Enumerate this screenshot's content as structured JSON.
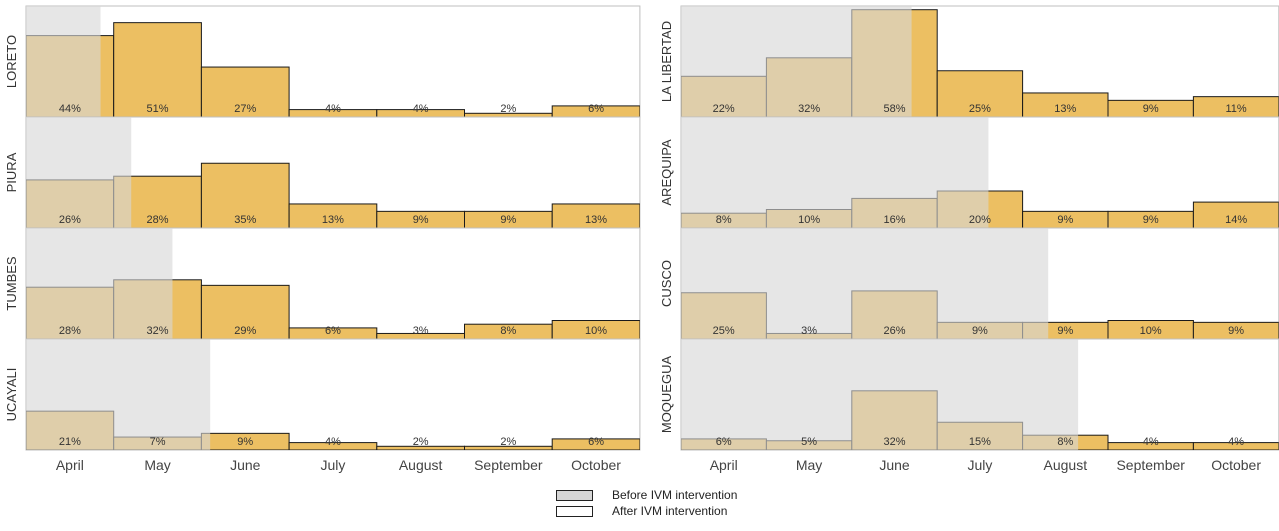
{
  "colors": {
    "before_shading": "#d6d6d6",
    "bar_fill": "#ecbf62",
    "bar_stroke": "#1a1a1a",
    "text": "#333333",
    "panel_border": "#bfbfbf"
  },
  "legend": {
    "before_label": "Before IVM intervention",
    "after_label": "After IVM intervention"
  },
  "chart_data": {
    "type": "bar",
    "categories": [
      "April",
      "May",
      "June",
      "July",
      "August",
      "September",
      "October"
    ],
    "ylim": [
      0,
      60
    ],
    "columns": [
      {
        "panels": [
          {
            "region": "LORETO",
            "values": [
              44,
              51,
              27,
              4,
              4,
              2,
              6
            ],
            "before_intervention_until_month": 0.85
          },
          {
            "region": "PIURA",
            "values": [
              26,
              28,
              35,
              13,
              9,
              9,
              13
            ],
            "before_intervention_until_month": 1.2
          },
          {
            "region": "TUMBES",
            "values": [
              28,
              32,
              29,
              6,
              3,
              8,
              10
            ],
            "before_intervention_until_month": 1.67
          },
          {
            "region": "UCAYALI",
            "values": [
              21,
              7,
              9,
              4,
              2,
              2,
              6
            ],
            "before_intervention_until_month": 2.1
          }
        ]
      },
      {
        "panels": [
          {
            "region": "LA LIBERTAD",
            "values": [
              22,
              32,
              58,
              25,
              13,
              9,
              11
            ],
            "before_intervention_until_month": 2.7
          },
          {
            "region": "AREQUIPA",
            "values": [
              8,
              10,
              16,
              20,
              9,
              9,
              14
            ],
            "before_intervention_until_month": 3.6
          },
          {
            "region": "CUSCO",
            "values": [
              25,
              3,
              26,
              9,
              9,
              10,
              9
            ],
            "before_intervention_until_month": 4.3
          },
          {
            "region": "MOQUEGUA",
            "values": [
              6,
              5,
              32,
              15,
              8,
              4,
              4
            ],
            "before_intervention_until_month": 4.65
          }
        ]
      }
    ]
  }
}
